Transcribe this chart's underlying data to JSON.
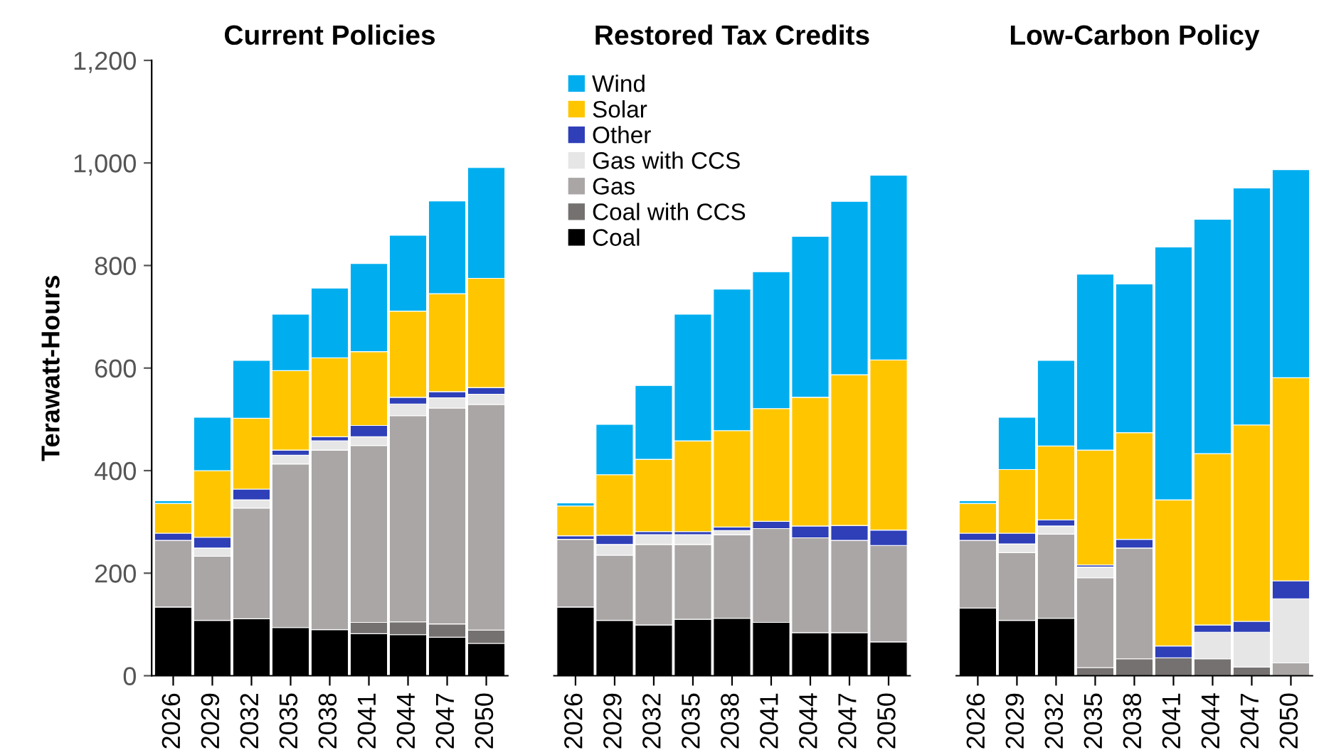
{
  "chart_data": [
    {
      "type": "bar",
      "stacked": true,
      "title": "Current Policies",
      "ylabel": "Terawatt-Hours",
      "categories": [
        "2026",
        "2029",
        "2032",
        "2035",
        "2038",
        "2041",
        "2044",
        "2047",
        "2050"
      ],
      "ylim": [
        0,
        1200
      ],
      "yticks": [
        0,
        200,
        400,
        600,
        800,
        {
          "value": 1000,
          "label": "1,000"
        },
        {
          "value": 1200,
          "label": "1,200"
        }
      ],
      "grid": false,
      "legend": false,
      "series": [
        {
          "color": "#000000",
          "values": [
            134,
            108,
            111,
            94,
            90,
            82,
            80,
            75,
            63
          ]
        },
        {
          "color": "#767171",
          "values": [
            0,
            0,
            0,
            0,
            0,
            22,
            25,
            26,
            26
          ]
        },
        {
          "color": "#aaa6a6",
          "values": [
            130,
            125,
            216,
            319,
            350,
            345,
            402,
            421,
            440
          ]
        },
        {
          "color": "#e6e6e6",
          "values": [
            0,
            16,
            16,
            17,
            18,
            17,
            23,
            20,
            20
          ]
        },
        {
          "color": "#2e3fb8",
          "values": [
            14,
            21,
            21,
            10,
            8,
            22,
            13,
            12,
            13
          ]
        },
        {
          "color": "#ffc600",
          "values": [
            58,
            130,
            138,
            155,
            154,
            144,
            168,
            191,
            213
          ]
        },
        {
          "color": "#00aeef",
          "values": [
            5,
            104,
            113,
            110,
            136,
            172,
            148,
            181,
            216
          ]
        }
      ]
    },
    {
      "type": "bar",
      "stacked": true,
      "title": "Restored Tax Credits",
      "tick_labels": "x",
      "categories": [
        "2026",
        "2029",
        "2032",
        "2035",
        "2038",
        "2041",
        "2044",
        "2047",
        "2050"
      ],
      "ylim": [
        0,
        1200
      ],
      "grid": false,
      "legend": "top left",
      "series": [
        {
          "name": "Coal",
          "color": "#000000",
          "values": [
            134,
            108,
            99,
            110,
            112,
            104,
            84,
            84,
            66
          ]
        },
        {
          "name": "Coal with CCS",
          "color": "#767171",
          "values": [
            0,
            0,
            0,
            0,
            0,
            0,
            0,
            0,
            0
          ]
        },
        {
          "name": "Gas",
          "color": "#aaa6a6",
          "values": [
            132,
            127,
            157,
            146,
            163,
            183,
            185,
            180,
            188
          ]
        },
        {
          "name": "Gas with CCS",
          "color": "#e6e6e6",
          "values": [
            0,
            21,
            19,
            19,
            8,
            0,
            0,
            0,
            0
          ]
        },
        {
          "name": "Other",
          "color": "#2e3fb8",
          "values": [
            7,
            18,
            6,
            6,
            7,
            14,
            23,
            29,
            30
          ]
        },
        {
          "name": "Solar",
          "color": "#ffc600",
          "values": [
            58,
            118,
            141,
            177,
            188,
            220,
            251,
            294,
            332
          ]
        },
        {
          "name": "Wind",
          "color": "#00aeef",
          "values": [
            6,
            98,
            144,
            247,
            276,
            267,
            314,
            338,
            360
          ]
        }
      ]
    },
    {
      "type": "bar",
      "stacked": true,
      "title": "Low-Carbon Policy",
      "tick_labels": "x",
      "categories": [
        "2026",
        "2029",
        "2032",
        "2035",
        "2038",
        "2041",
        "2044",
        "2047",
        "2050"
      ],
      "ylim": [
        0,
        1200
      ],
      "grid": false,
      "legend": false,
      "series": [
        {
          "color": "#000000",
          "values": [
            132,
            108,
            112,
            0,
            0,
            0,
            0,
            0,
            0
          ]
        },
        {
          "color": "#767171",
          "values": [
            0,
            0,
            0,
            16,
            33,
            35,
            33,
            17,
            0
          ]
        },
        {
          "color": "#aaa6a6",
          "values": [
            132,
            132,
            164,
            175,
            216,
            0,
            0,
            0,
            25
          ]
        },
        {
          "color": "#e6e6e6",
          "values": [
            0,
            17,
            16,
            21,
            0,
            0,
            52,
            68,
            125
          ]
        },
        {
          "color": "#2e3fb8",
          "values": [
            14,
            21,
            12,
            4,
            17,
            23,
            14,
            21,
            35
          ]
        },
        {
          "color": "#ffc600",
          "values": [
            58,
            124,
            144,
            224,
            208,
            285,
            334,
            383,
            396
          ]
        },
        {
          "color": "#00aeef",
          "values": [
            5,
            102,
            167,
            343,
            290,
            493,
            457,
            462,
            406
          ]
        }
      ]
    }
  ]
}
